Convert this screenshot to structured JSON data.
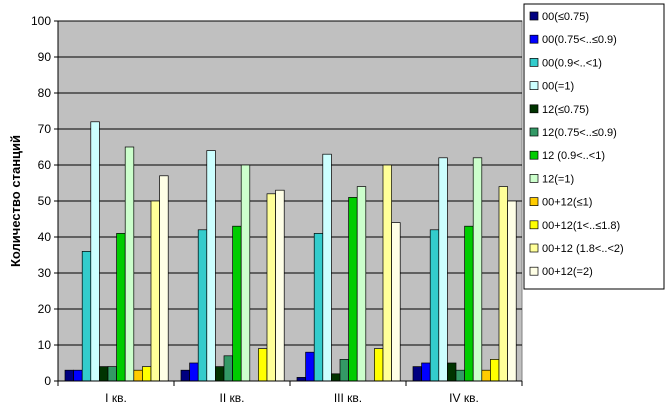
{
  "chart_data": {
    "type": "bar",
    "title": "",
    "xlabel": "",
    "ylabel": "Количество станций",
    "ylim": [
      0,
      100
    ],
    "yticks": [
      0,
      10,
      20,
      30,
      40,
      50,
      60,
      70,
      80,
      90,
      100
    ],
    "grid": "horizontal",
    "legend_position": "right",
    "plot_background": "#c0c0c0",
    "categories": [
      "I кв.",
      "II кв.",
      "III кв.",
      "IV кв."
    ],
    "series": [
      {
        "name": "00(≤0.75)",
        "color": "#000080",
        "values": [
          3,
          3,
          1,
          4
        ]
      },
      {
        "name": "00(0.75<..≤0.9)",
        "color": "#0000ff",
        "values": [
          3,
          5,
          8,
          5
        ]
      },
      {
        "name": "00(0.9<..<1)",
        "color": "#33cccc",
        "values": [
          36,
          42,
          41,
          42
        ]
      },
      {
        "name": "00(=1)",
        "color": "#ccffff",
        "values": [
          72,
          64,
          63,
          62
        ]
      },
      {
        "name": "12(≤0.75)",
        "color": "#003300",
        "values": [
          4,
          4,
          2,
          5
        ]
      },
      {
        "name": "12(0.75<..≤0.9)",
        "color": "#339966",
        "values": [
          4,
          7,
          6,
          3
        ]
      },
      {
        "name": "12 (0.9<..<1)",
        "color": "#00cc00",
        "values": [
          41,
          43,
          51,
          43
        ]
      },
      {
        "name": "12(=1)",
        "color": "#ccffcc",
        "values": [
          65,
          60,
          54,
          62
        ]
      },
      {
        "name": "00+12(≤1)",
        "color": "#ffcc00",
        "values": [
          3,
          0,
          0,
          3
        ]
      },
      {
        "name": "00+12(1<..≤1.8)",
        "color": "#ffff00",
        "values": [
          4,
          9,
          9,
          6
        ]
      },
      {
        "name": "00+12 (1.8<..<2)",
        "color": "#ffff99",
        "values": [
          50,
          52,
          60,
          54
        ]
      },
      {
        "name": "00+12(=2)",
        "color": "#ffffe6",
        "values": [
          57,
          53,
          44,
          50
        ]
      }
    ]
  }
}
